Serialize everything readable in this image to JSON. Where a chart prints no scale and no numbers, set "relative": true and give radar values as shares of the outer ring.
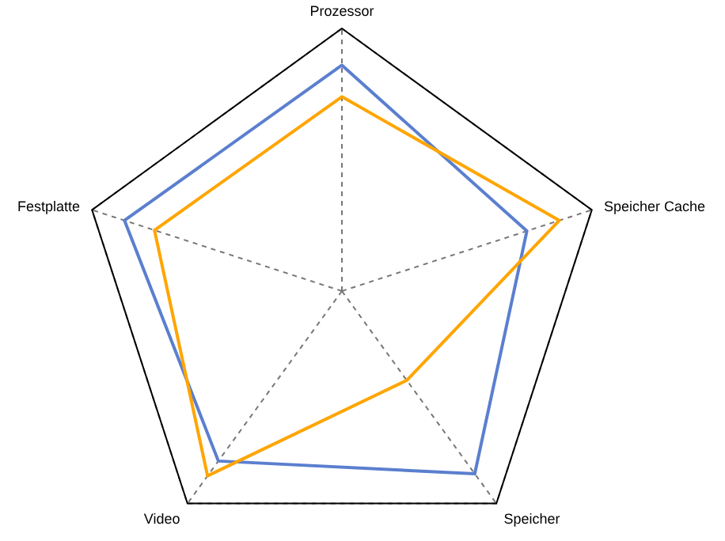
{
  "chart_data": {
    "type": "radar",
    "relative": true,
    "grid": true,
    "legend": false,
    "categories": [
      "Prozessor",
      "Speicher Cache",
      "Speicher",
      "Video",
      "Festplatte"
    ],
    "series": [
      {
        "color": "#5b7fcf",
        "values": [
          0.86,
          0.74,
          0.86,
          0.8,
          0.87
        ]
      },
      {
        "color": "#ffa500",
        "values": [
          0.74,
          0.87,
          0.42,
          0.87,
          0.75
        ]
      }
    ]
  }
}
